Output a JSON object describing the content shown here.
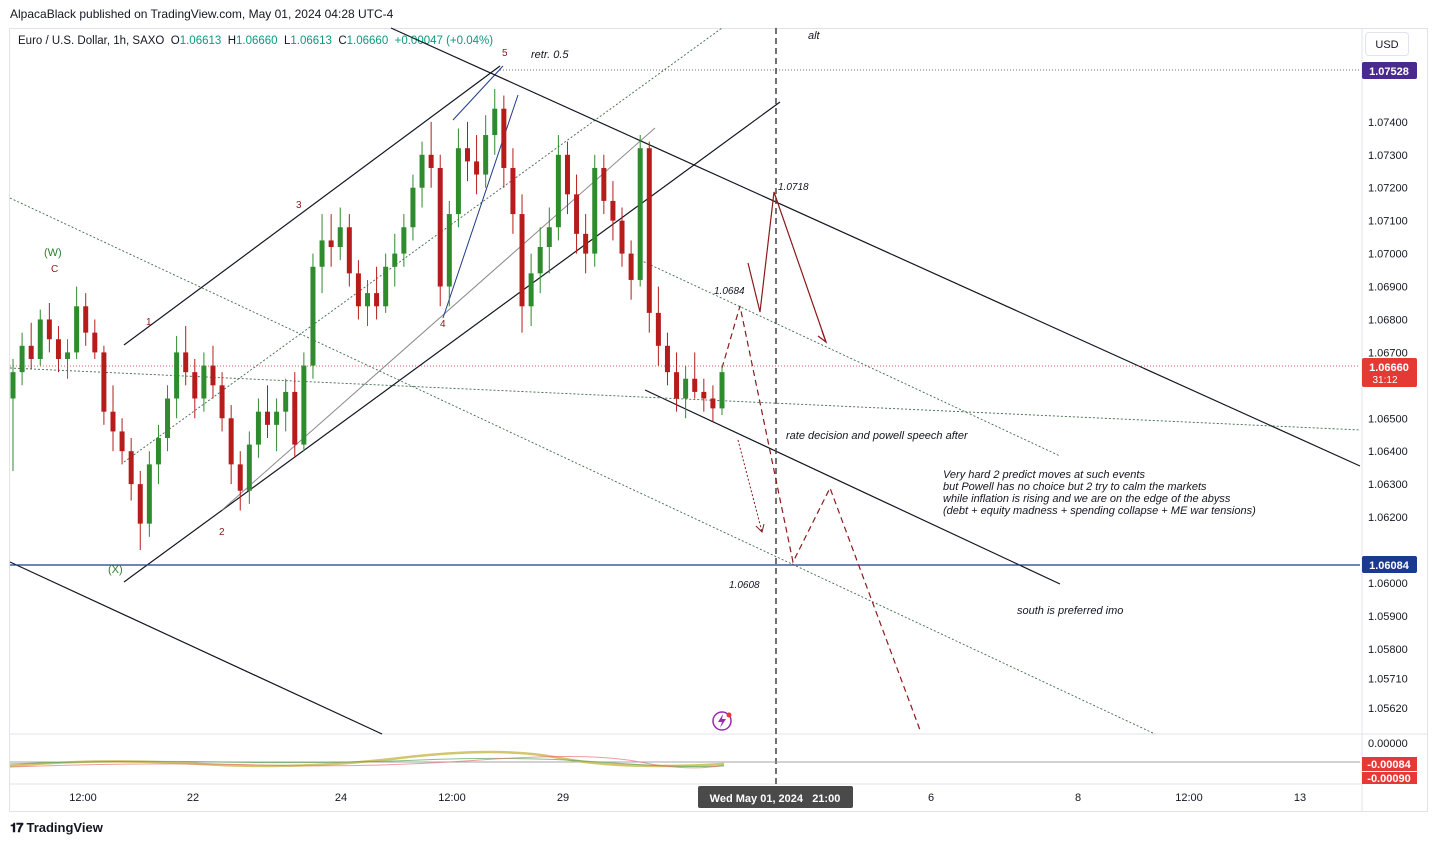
{
  "header": {
    "publisher": "AlpacaBlack published on TradingView.com, May 01, 2024 04:28 UTC-4"
  },
  "symbol": {
    "name": "Euro / U.S. Dollar, 1h, SAXO",
    "o_label": "O",
    "o": "1.06613",
    "h_label": "H",
    "h": "1.06660",
    "l_label": "L",
    "l": "1.06613",
    "c_label": "C",
    "c": "1.06660",
    "change": "+0.00047 (+0.04%)"
  },
  "currency": "USD",
  "footer": {
    "brand": "TradingView",
    "logo": "tv-logo-icon"
  },
  "colors": {
    "up": "#089981",
    "down": "#c62828",
    "candle_up": "#2e8b2e",
    "candle_down": "#b71c1c",
    "price_tag": "#e53935",
    "level_tag": "#1a3a8f",
    "alt_tag": "#4a2a8f",
    "annotation": "#8b1a1a"
  },
  "chart_data": {
    "type": "candlestick",
    "title": "Euro / U.S. Dollar, 1h, SAXO",
    "y_axis": {
      "ticks": [
        "1.07400",
        "1.07300",
        "1.07200",
        "1.07100",
        "1.07000",
        "1.06900",
        "1.06800",
        "1.06700",
        "1.06500",
        "1.06400",
        "1.06300",
        "1.06200",
        "1.06000",
        "1.05900",
        "1.05800",
        "1.05710",
        "1.05620"
      ],
      "ylim": [
        1.0555,
        1.0765
      ]
    },
    "x_axis": {
      "ticks": [
        "12:00",
        "22",
        "24",
        "12:00",
        "29",
        "6",
        "8",
        "12:00",
        "13"
      ],
      "cursor_label": "Wed May 01, 2024   21:00"
    },
    "price_tags": {
      "top_level": "1.07528",
      "current": "1.06660",
      "countdown": "31:12",
      "bottom_level": "1.06084"
    },
    "annotations": {
      "wave_w": "(W)",
      "wave_c": "C",
      "wave_x": "(X)",
      "wave_1": "1",
      "wave_2": "2",
      "wave_3": "3",
      "wave_4": "4",
      "wave_5": "5",
      "retr": "retr. 0.5",
      "alt": "alt",
      "p1": "1.0718",
      "p2": "1.0684",
      "p3": "1.0608",
      "rate_note": "rate decision and powell speech after",
      "note_lines": [
        "Very hard 2 predict moves at such events",
        "but Powell has no choice but 2 try to calm the markets",
        "while inflation is rising and we are on the edge of the abyss",
        "(debt + equity madness + spending collapse + ME war tensions)"
      ],
      "south": "south is preferred imo"
    },
    "oscillator": {
      "zero": "0.00000",
      "value_1": "-0.00084",
      "value_2": "-0.00090"
    },
    "candles": [
      [
        1.0656,
        1.0668,
        1.0634,
        1.0664
      ],
      [
        1.0664,
        1.0676,
        1.066,
        1.0672
      ],
      [
        1.0672,
        1.0679,
        1.0665,
        1.0668
      ],
      [
        1.0668,
        1.0683,
        1.0666,
        1.068
      ],
      [
        1.068,
        1.0685,
        1.067,
        1.0674
      ],
      [
        1.0674,
        1.0678,
        1.0664,
        1.0668
      ],
      [
        1.0668,
        1.0674,
        1.0662,
        1.067
      ],
      [
        1.067,
        1.069,
        1.0668,
        1.0684
      ],
      [
        1.0684,
        1.0688,
        1.0672,
        1.0676
      ],
      [
        1.0676,
        1.068,
        1.0668,
        1.067
      ],
      [
        1.067,
        1.0672,
        1.0648,
        1.0652
      ],
      [
        1.0652,
        1.066,
        1.064,
        1.0646
      ],
      [
        1.0646,
        1.065,
        1.0636,
        1.064
      ],
      [
        1.064,
        1.0644,
        1.0625,
        1.063
      ],
      [
        1.063,
        1.0634,
        1.061,
        1.0618
      ],
      [
        1.0618,
        1.064,
        1.0614,
        1.0636
      ],
      [
        1.0636,
        1.0648,
        1.063,
        1.0644
      ],
      [
        1.0644,
        1.066,
        1.064,
        1.0656
      ],
      [
        1.0656,
        1.0675,
        1.065,
        1.067
      ],
      [
        1.067,
        1.0678,
        1.066,
        1.0664
      ],
      [
        1.0664,
        1.0668,
        1.065,
        1.0656
      ],
      [
        1.0656,
        1.067,
        1.0652,
        1.0666
      ],
      [
        1.0666,
        1.0672,
        1.0656,
        1.066
      ],
      [
        1.066,
        1.0664,
        1.0646,
        1.065
      ],
      [
        1.065,
        1.0654,
        1.063,
        1.0636
      ],
      [
        1.0636,
        1.064,
        1.0622,
        1.0628
      ],
      [
        1.0628,
        1.0646,
        1.0624,
        1.0642
      ],
      [
        1.0642,
        1.0656,
        1.0638,
        1.0652
      ],
      [
        1.0652,
        1.066,
        1.0644,
        1.0648
      ],
      [
        1.0648,
        1.0656,
        1.064,
        1.0652
      ],
      [
        1.0652,
        1.0662,
        1.0646,
        1.0658
      ],
      [
        1.0658,
        1.0664,
        1.0638,
        1.0642
      ],
      [
        1.0642,
        1.067,
        1.064,
        1.0666
      ],
      [
        1.0666,
        1.07,
        1.0662,
        1.0696
      ],
      [
        1.0696,
        1.0712,
        1.0688,
        1.0704
      ],
      [
        1.0704,
        1.0712,
        1.0696,
        1.0702
      ],
      [
        1.0702,
        1.0714,
        1.0698,
        1.0708
      ],
      [
        1.0708,
        1.0712,
        1.069,
        1.0694
      ],
      [
        1.0694,
        1.0698,
        1.068,
        1.0684
      ],
      [
        1.0684,
        1.0692,
        1.0678,
        1.0688
      ],
      [
        1.0688,
        1.0696,
        1.068,
        1.0684
      ],
      [
        1.0684,
        1.07,
        1.0682,
        1.0696
      ],
      [
        1.0696,
        1.0706,
        1.069,
        1.07
      ],
      [
        1.07,
        1.0712,
        1.0696,
        1.0708
      ],
      [
        1.0708,
        1.0724,
        1.0704,
        1.072
      ],
      [
        1.072,
        1.0734,
        1.0714,
        1.073
      ],
      [
        1.073,
        1.074,
        1.072,
        1.0726
      ],
      [
        1.0726,
        1.073,
        1.0684,
        1.069
      ],
      [
        1.069,
        1.0716,
        1.0684,
        1.0712
      ],
      [
        1.0712,
        1.0738,
        1.0708,
        1.0732
      ],
      [
        1.0732,
        1.074,
        1.0722,
        1.0728
      ],
      [
        1.0728,
        1.0736,
        1.0718,
        1.0724
      ],
      [
        1.0724,
        1.0742,
        1.072,
        1.0736
      ],
      [
        1.0736,
        1.075,
        1.073,
        1.0744
      ],
      [
        1.0744,
        1.0748,
        1.072,
        1.0726
      ],
      [
        1.0726,
        1.0732,
        1.0706,
        1.0712
      ],
      [
        1.0712,
        1.0718,
        1.0676,
        1.0684
      ],
      [
        1.0684,
        1.07,
        1.0678,
        1.0694
      ],
      [
        1.0694,
        1.0708,
        1.0688,
        1.0702
      ],
      [
        1.0702,
        1.0714,
        1.0694,
        1.0708
      ],
      [
        1.0708,
        1.0736,
        1.0704,
        1.073
      ],
      [
        1.073,
        1.0734,
        1.0712,
        1.0718
      ],
      [
        1.0718,
        1.0724,
        1.07,
        1.0706
      ],
      [
        1.0706,
        1.0712,
        1.0694,
        1.07
      ],
      [
        1.07,
        1.073,
        1.0696,
        1.0726
      ],
      [
        1.0726,
        1.073,
        1.0712,
        1.0716
      ],
      [
        1.0716,
        1.0722,
        1.0704,
        1.071
      ],
      [
        1.071,
        1.0714,
        1.0696,
        1.07
      ],
      [
        1.07,
        1.0704,
        1.0686,
        1.0692
      ],
      [
        1.0692,
        1.0736,
        1.069,
        1.0732
      ],
      [
        1.0732,
        1.0734,
        1.0676,
        1.0682
      ],
      [
        1.0682,
        1.069,
        1.0666,
        1.0672
      ],
      [
        1.0672,
        1.0676,
        1.066,
        1.0664
      ],
      [
        1.0664,
        1.067,
        1.0652,
        1.0656
      ],
      [
        1.0656,
        1.0666,
        1.065,
        1.0662
      ],
      [
        1.0662,
        1.067,
        1.0656,
        1.0658
      ],
      [
        1.0658,
        1.0662,
        1.0652,
        1.0656
      ],
      [
        1.0656,
        1.066,
        1.0649,
        1.0653
      ],
      [
        1.0653,
        1.0666,
        1.0651,
        1.0664
      ]
    ]
  }
}
